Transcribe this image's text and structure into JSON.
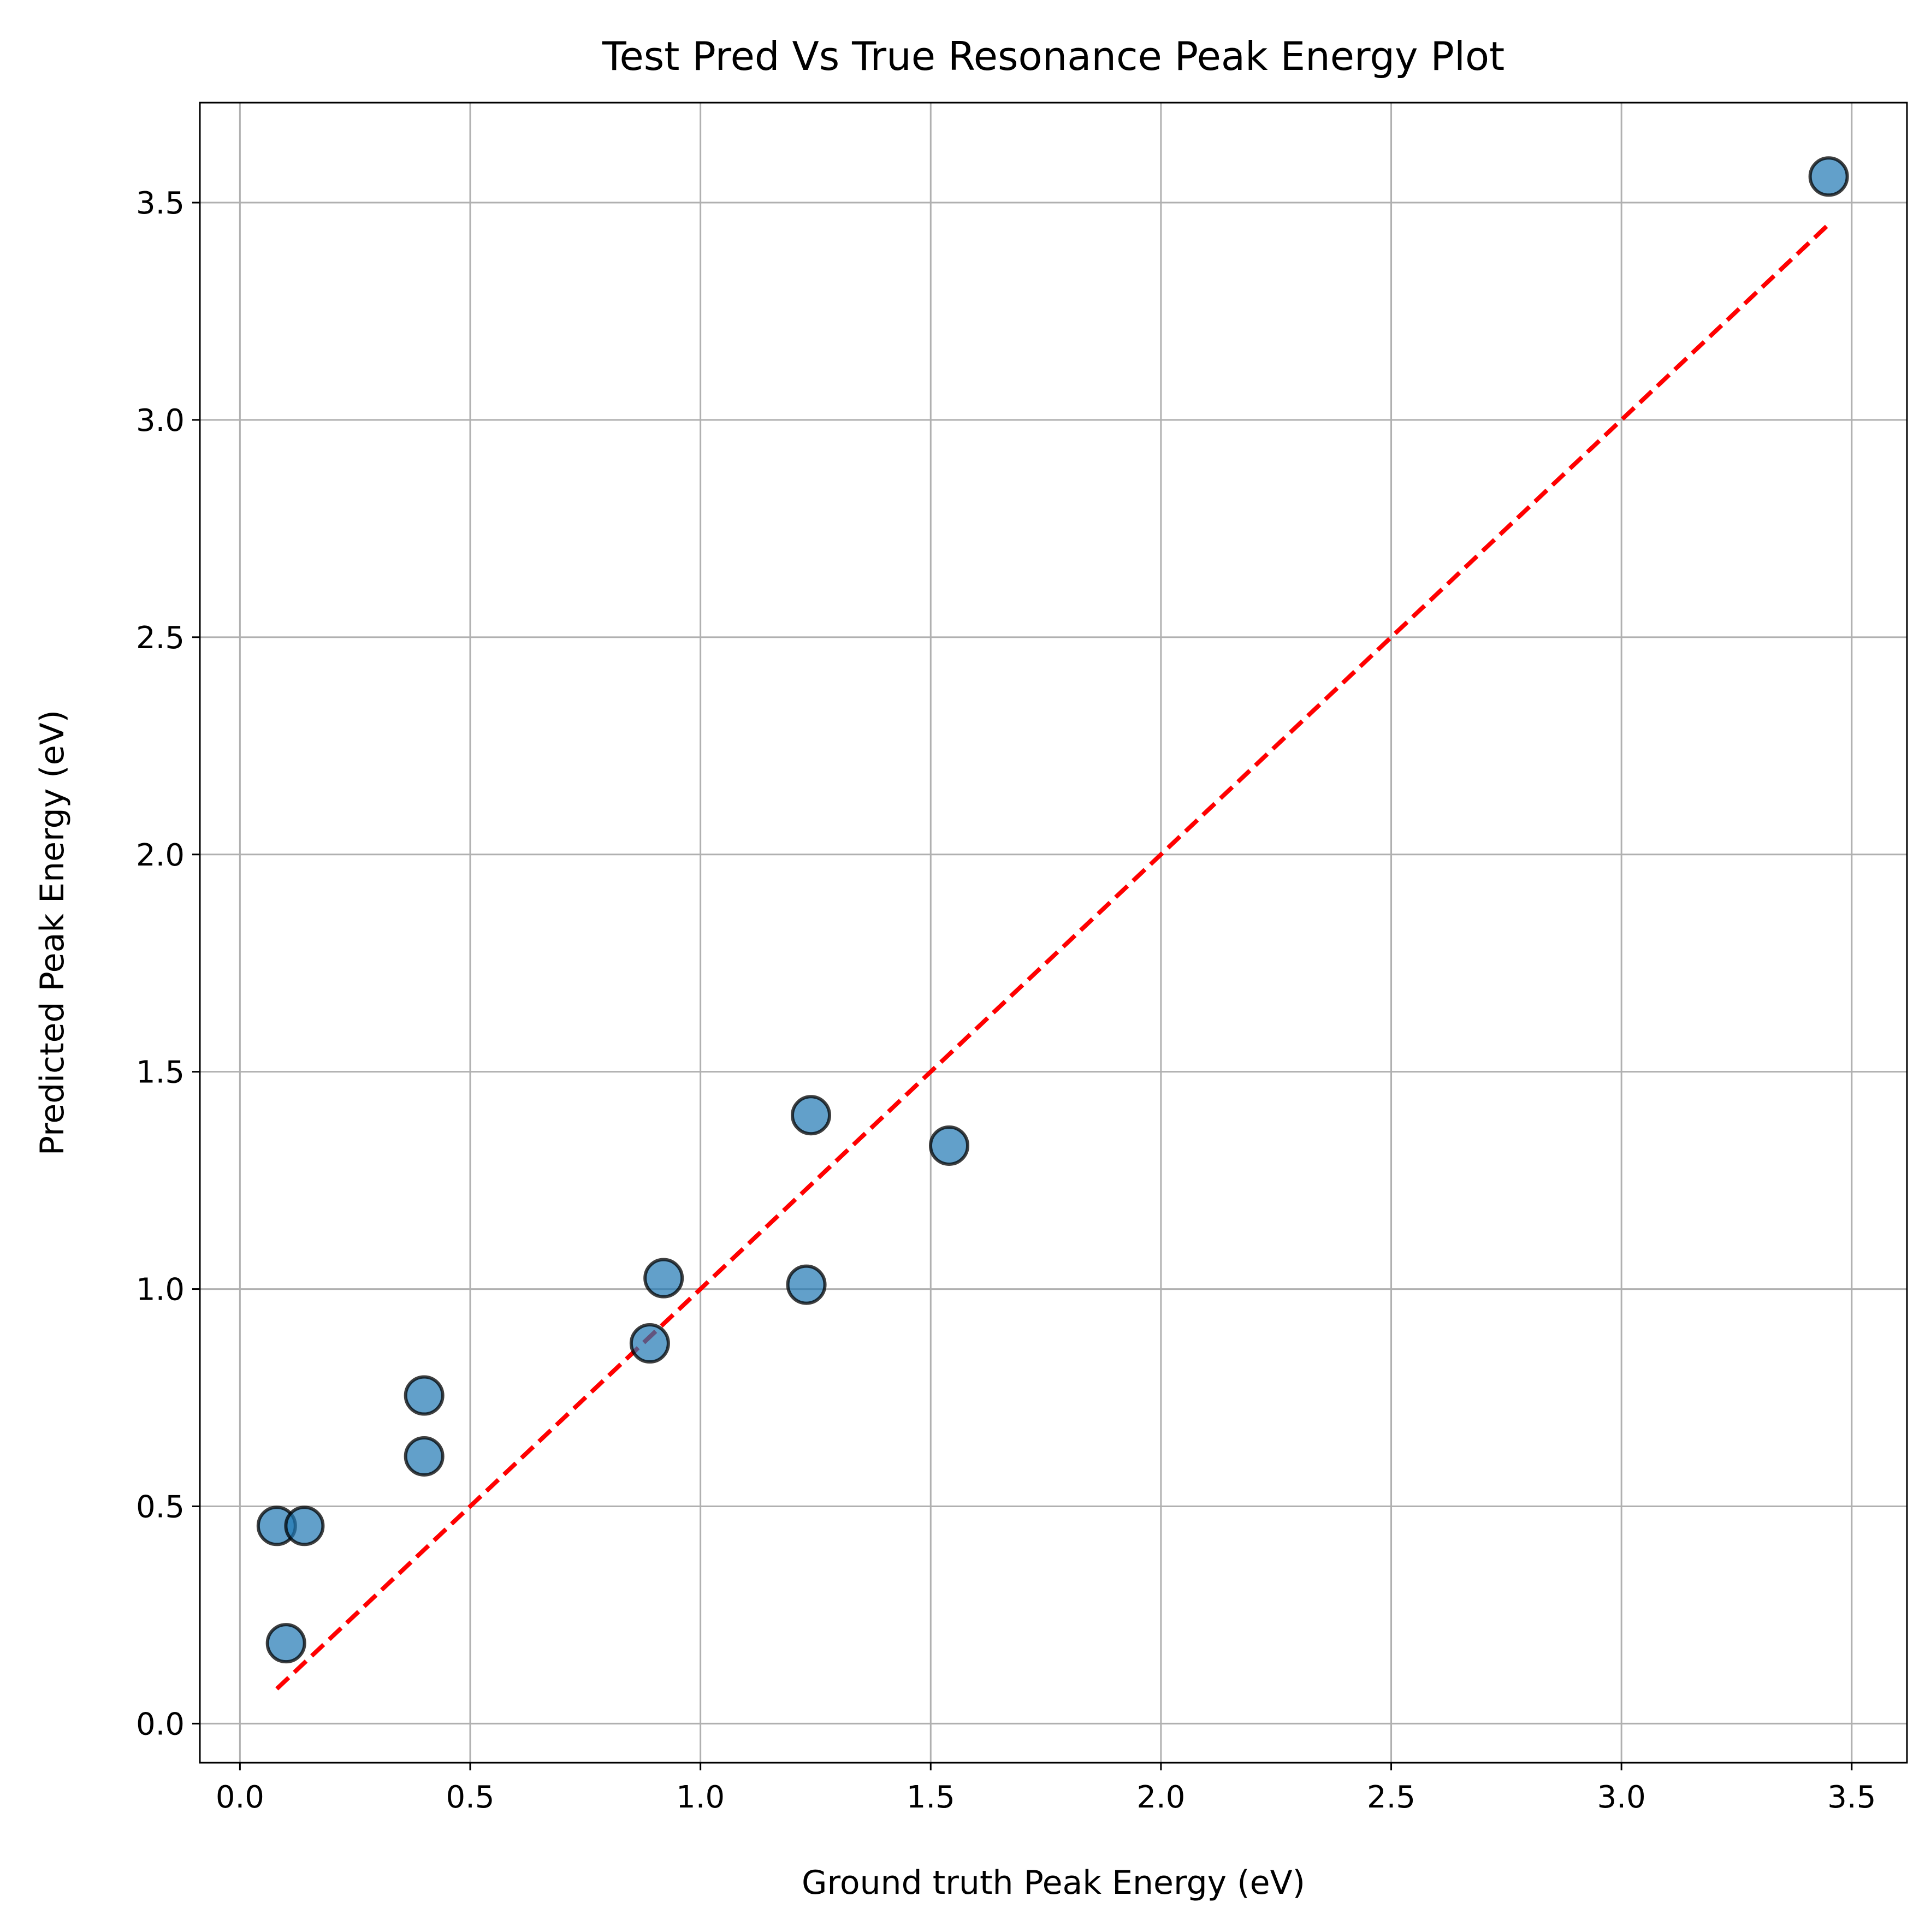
{
  "chart_data": {
    "type": "scatter",
    "title": "Test Pred Vs True Resonance Peak Energy Plot",
    "xlabel": "Ground truth Peak Energy (eV)",
    "ylabel": "Predicted Peak Energy (eV)",
    "xlim": [
      -0.087,
      3.62
    ],
    "ylim": [
      -0.09,
      3.73
    ],
    "x_ticks": [
      0.0,
      0.5,
      1.0,
      1.5,
      2.0,
      2.5,
      3.0,
      3.5
    ],
    "x_tick_labels": [
      "0.0",
      "0.5",
      "1.0",
      "1.5",
      "2.0",
      "2.5",
      "3.0",
      "3.5"
    ],
    "y_ticks": [
      0.0,
      0.5,
      1.0,
      1.5,
      2.0,
      2.5,
      3.0,
      3.5
    ],
    "y_tick_labels": [
      "0.0",
      "0.5",
      "1.0",
      "1.5",
      "2.0",
      "2.5",
      "3.0",
      "3.5"
    ],
    "grid": true,
    "points": [
      {
        "x": 0.08,
        "y": 0.455
      },
      {
        "x": 0.14,
        "y": 0.455
      },
      {
        "x": 0.1,
        "y": 0.185
      },
      {
        "x": 0.4,
        "y": 0.755
      },
      {
        "x": 0.4,
        "y": 0.615
      },
      {
        "x": 0.89,
        "y": 0.875
      },
      {
        "x": 0.92,
        "y": 1.025
      },
      {
        "x": 1.23,
        "y": 1.01
      },
      {
        "x": 1.24,
        "y": 1.4
      },
      {
        "x": 1.54,
        "y": 1.33
      },
      {
        "x": 3.45,
        "y": 3.56
      }
    ],
    "reference_line": {
      "x": [
        0.08,
        3.45
      ],
      "y": [
        0.08,
        3.45
      ],
      "style": "dashed"
    },
    "colors": {
      "marker_fill": "#1f77b4",
      "marker_edge": "#000000",
      "reference_line": "#ff0000",
      "grid": "#b0b0b0"
    }
  }
}
